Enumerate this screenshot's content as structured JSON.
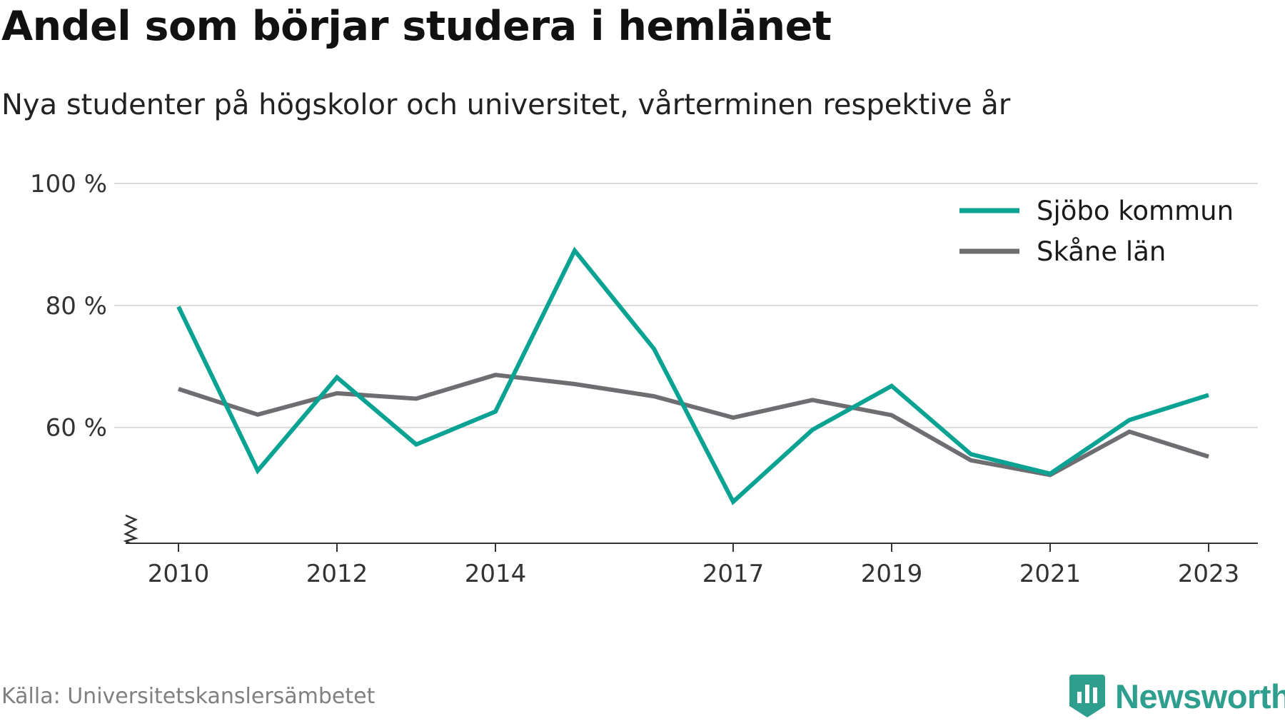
{
  "title": "Andel som börjar studera i hemlänet",
  "subtitle": "Nya studenter på högskolor och universitet, vårterminen respektive år",
  "source": "Källa: Universitetskanslersämbetet",
  "brand": {
    "name": "Newsworthy",
    "icon": "newsworthy-logo-icon",
    "color": "#2e9e8f"
  },
  "colors": {
    "sjobo": "#0aa393",
    "skane": "#6d6d72",
    "grid": "#d9d9d9",
    "axis": "#333333"
  },
  "chart_data": {
    "type": "line",
    "title": "Andel som börjar studera i hemlänet",
    "subtitle": "Nya studenter på högskolor och universitet, vårterminen respektive år",
    "x": [
      2010,
      2011,
      2012,
      2013,
      2014,
      2015,
      2016,
      2017,
      2018,
      2019,
      2020,
      2021,
      2022,
      2023
    ],
    "x_tick_labels": [
      "2010",
      "2012",
      "2014",
      "2017",
      "2019",
      "2021",
      "2023"
    ],
    "y_tick_labels": [
      "60 %",
      "80 %",
      "100 %"
    ],
    "ylim": [
      41,
      100
    ],
    "y_ticks": [
      60,
      80,
      100
    ],
    "y_axis_break": true,
    "grid": true,
    "legend_position": "top-right",
    "series": [
      {
        "name": "Sjöbo kommun",
        "color": "#0aa393",
        "values": [
          79.8,
          52.9,
          68.2,
          57.2,
          62.6,
          89.0,
          72.9,
          47.8,
          59.6,
          66.8,
          55.6,
          52.4,
          61.2,
          65.3
        ]
      },
      {
        "name": "Skåne län",
        "color": "#6d6d72",
        "values": [
          66.3,
          62.1,
          65.6,
          64.7,
          68.6,
          67.1,
          65.1,
          61.6,
          64.5,
          62.0,
          54.6,
          52.2,
          59.3,
          55.2
        ]
      }
    ]
  }
}
